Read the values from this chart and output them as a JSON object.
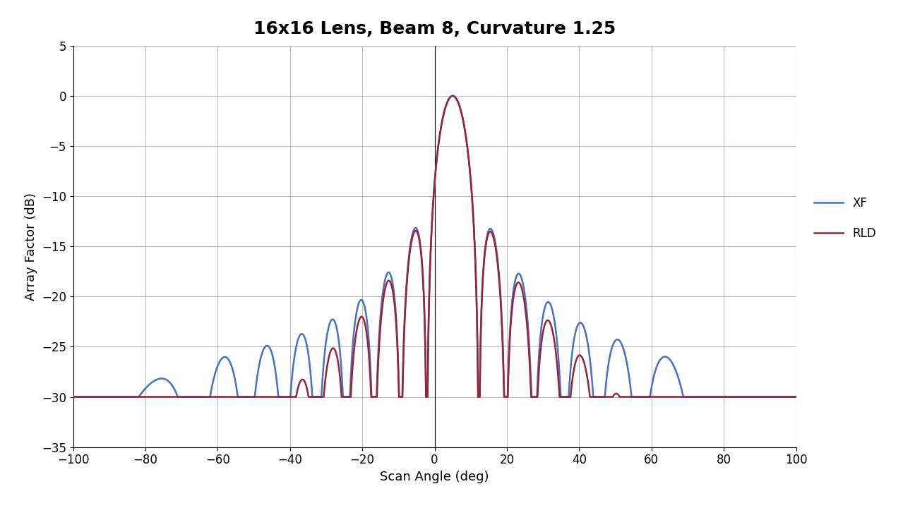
{
  "title": "16x16 Lens, Beam 8, Curvature 1.25",
  "xlabel": "Scan Angle (deg)",
  "ylabel": "Array Factor (dB)",
  "xlim": [
    -100,
    100
  ],
  "ylim": [
    -35,
    5
  ],
  "yticks": [
    5,
    0,
    -5,
    -10,
    -15,
    -20,
    -25,
    -30,
    -35
  ],
  "xticks": [
    -100,
    -80,
    -60,
    -40,
    -20,
    0,
    20,
    40,
    60,
    80,
    100
  ],
  "xf_color": "#4472C4",
  "rld_color": "#9B2335",
  "title_fontsize": 18,
  "axis_label_fontsize": 13,
  "tick_fontsize": 12,
  "legend_labels": [
    "XF",
    "RLD"
  ],
  "background_color": "#ffffff",
  "grid_color": "#aaaaaa"
}
